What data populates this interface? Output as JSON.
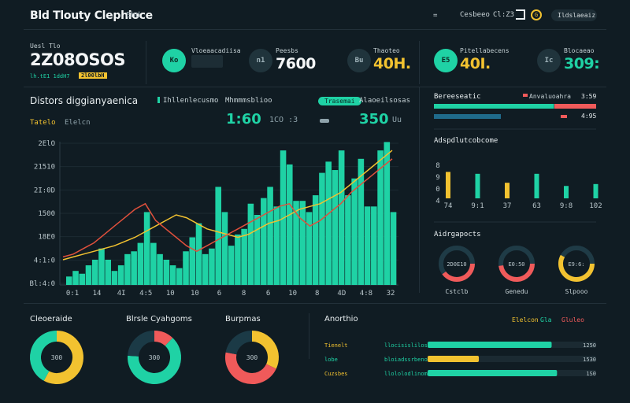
{
  "header": {
    "title": "Bld Tlouty Clephioce",
    "title_tag": "Ehd",
    "left_label": "=",
    "mid_label": "Cesbeeo",
    "code_label": "Cl:Z3",
    "circle_icon": "G",
    "search_label": "Ildslaeaiz"
  },
  "kpis": {
    "total_label": "Uesl Tlo",
    "total_value": "2Z08OSOS",
    "total_sub_a": "lh.tE1 1ddH7",
    "total_sub_b": "2l00lbH",
    "items": [
      {
        "badge": "Ko",
        "label": "Vloeaacadiisa",
        "value": "",
        "style": "teal"
      },
      {
        "badge": "n1",
        "label": "Peesbs",
        "value": "7600",
        "style": "dark"
      },
      {
        "badge": "Bu",
        "label": "Thaoteo",
        "value": "40H.",
        "style": "dark"
      },
      {
        "badge": "E5",
        "label": "Pitellabecens",
        "value": "40I.",
        "style": "teal"
      },
      {
        "badge": "Ic",
        "label": "Blocaeao",
        "value": "309:",
        "style": "dark"
      }
    ]
  },
  "main": {
    "title": "Distors diggianyaenica",
    "legend_a": "Ihllenlecusmo",
    "legend_b": "Mhmmmsblioo",
    "pill": "Trasemai",
    "legend_c": "Alaoeilsosas",
    "sub_a": "Tatelo",
    "sub_b": "Elelcn",
    "big_a": "1:60",
    "big_a_sub": "1CO :3",
    "big_b": "350",
    "big_b_sub": "Uu"
  },
  "chart_data": {
    "type": "bar",
    "y_ticks": [
      "2ElO",
      "21510",
      "2I:0D",
      "1500",
      "18E0",
      "4:1:0",
      "Bl:4:0"
    ],
    "x_ticks": [
      "0:1",
      "14",
      "4I",
      "4:5",
      "10",
      "10",
      "6",
      "8",
      "6",
      "10",
      "8",
      "4D",
      "4:8",
      "32"
    ],
    "bar_heights_pct": [
      6,
      10,
      8,
      14,
      18,
      26,
      18,
      10,
      14,
      22,
      24,
      30,
      52,
      30,
      22,
      18,
      14,
      12,
      24,
      34,
      44,
      22,
      26,
      70,
      52,
      28,
      36,
      40,
      58,
      50,
      62,
      70,
      56,
      96,
      86,
      60,
      60,
      52,
      64,
      80,
      88,
      82,
      96,
      64,
      76,
      90,
      56,
      56,
      96,
      102,
      52
    ],
    "line_a_pct": [
      18,
      20,
      22,
      24,
      26,
      28,
      31,
      34,
      38,
      42,
      46,
      50,
      48,
      44,
      40,
      38,
      36,
      34,
      36,
      40,
      44,
      46,
      50,
      54,
      56,
      58,
      62,
      66,
      72,
      78,
      84,
      90,
      96
    ],
    "line_b_pct": [
      20,
      22,
      26,
      30,
      36,
      42,
      48,
      54,
      58,
      46,
      40,
      34,
      28,
      24,
      28,
      32,
      36,
      40,
      44,
      48,
      52,
      56,
      58,
      48,
      42,
      46,
      52,
      58,
      66,
      72,
      78,
      84,
      90
    ],
    "colors": {
      "bar": "#1fd2a5",
      "line_a": "#f2c230",
      "line_b": "#e0503c"
    }
  },
  "right": {
    "r1_title": "Bereeseatic",
    "r1_label2": "Anvaluoahra",
    "r1_val": "3:59",
    "r1_val2": "4:95",
    "r1_bars": [
      {
        "color": "#1fd2a5",
        "pct": 74
      },
      {
        "color": "#f05a5a",
        "pct": 22
      }
    ],
    "r2_title": "Adspdlutcobcome",
    "r2_bars": [
      {
        "x": "74",
        "h": 68,
        "color": "#f2c230"
      },
      {
        "x": "9:1",
        "h": 62,
        "color": "#1fd2a5"
      },
      {
        "x": "37",
        "h": 34,
        "color": "#f2c230"
      },
      {
        "x": "63",
        "h": 62,
        "color": "#1fd2a5"
      },
      {
        "x": "9:8",
        "h": 24,
        "color": "#1fd2a5"
      },
      {
        "x": "102",
        "h": 30,
        "color": "#1fd2a5"
      }
    ],
    "r2_yticks": [
      "8",
      "9",
      "0",
      "4"
    ],
    "r3_title": "Aidrgapocts",
    "gauges": [
      {
        "label": "Cstclb",
        "center": "2D0E10",
        "pct": 40,
        "color": "#f05a5a"
      },
      {
        "label": "Genedu",
        "center": "E0:50",
        "pct": 48,
        "color": "#f05a5a"
      },
      {
        "label": "Slpooo",
        "center": "E9:6:",
        "pct": 58,
        "color": "#f2c230"
      }
    ]
  },
  "bottom": {
    "donuts": [
      {
        "title": "Cleoeraide",
        "center": "300",
        "slices": [
          {
            "pct": 58,
            "color": "#f2c230"
          },
          {
            "pct": 42,
            "color": "#1fd2a5"
          }
        ]
      },
      {
        "title": "Blrsle Cyahgoms",
        "center": "300",
        "slices": [
          {
            "pct": 12,
            "color": "#f05a5a"
          },
          {
            "pct": 64,
            "color": "#1fd2a5"
          },
          {
            "pct": 24,
            "color": "#1b3a46"
          }
        ]
      },
      {
        "title": "Burpmas",
        "center": "300",
        "slices": [
          {
            "pct": 32,
            "color": "#f2c230"
          },
          {
            "pct": 46,
            "color": "#f05a5a"
          },
          {
            "pct": 22,
            "color": "#1b3a46"
          }
        ]
      }
    ],
    "perf_title": "Anorthio",
    "perf_tag1": "Elelcon",
    "perf_tag2": "Gla",
    "perf_tag3": "Gluleo",
    "perf_rows": [
      {
        "lbl": "Tienelt",
        "mid": "llocisislilosel",
        "value": "1250",
        "pct": 92,
        "color": "#1fd2a5",
        "lblc": "#f2c230"
      },
      {
        "lbl": "lobe",
        "mid": "bloiadssrbeno",
        "value": "1530",
        "pct": 38,
        "color": "#f2c230",
        "lblc": "#1fd2a5"
      },
      {
        "lbl": "Cuzsbes",
        "mid": "llololodlinomm",
        "value": "1S0",
        "pct": 96,
        "color": "#1fd2a5",
        "lblc": "#f2c230"
      }
    ]
  }
}
